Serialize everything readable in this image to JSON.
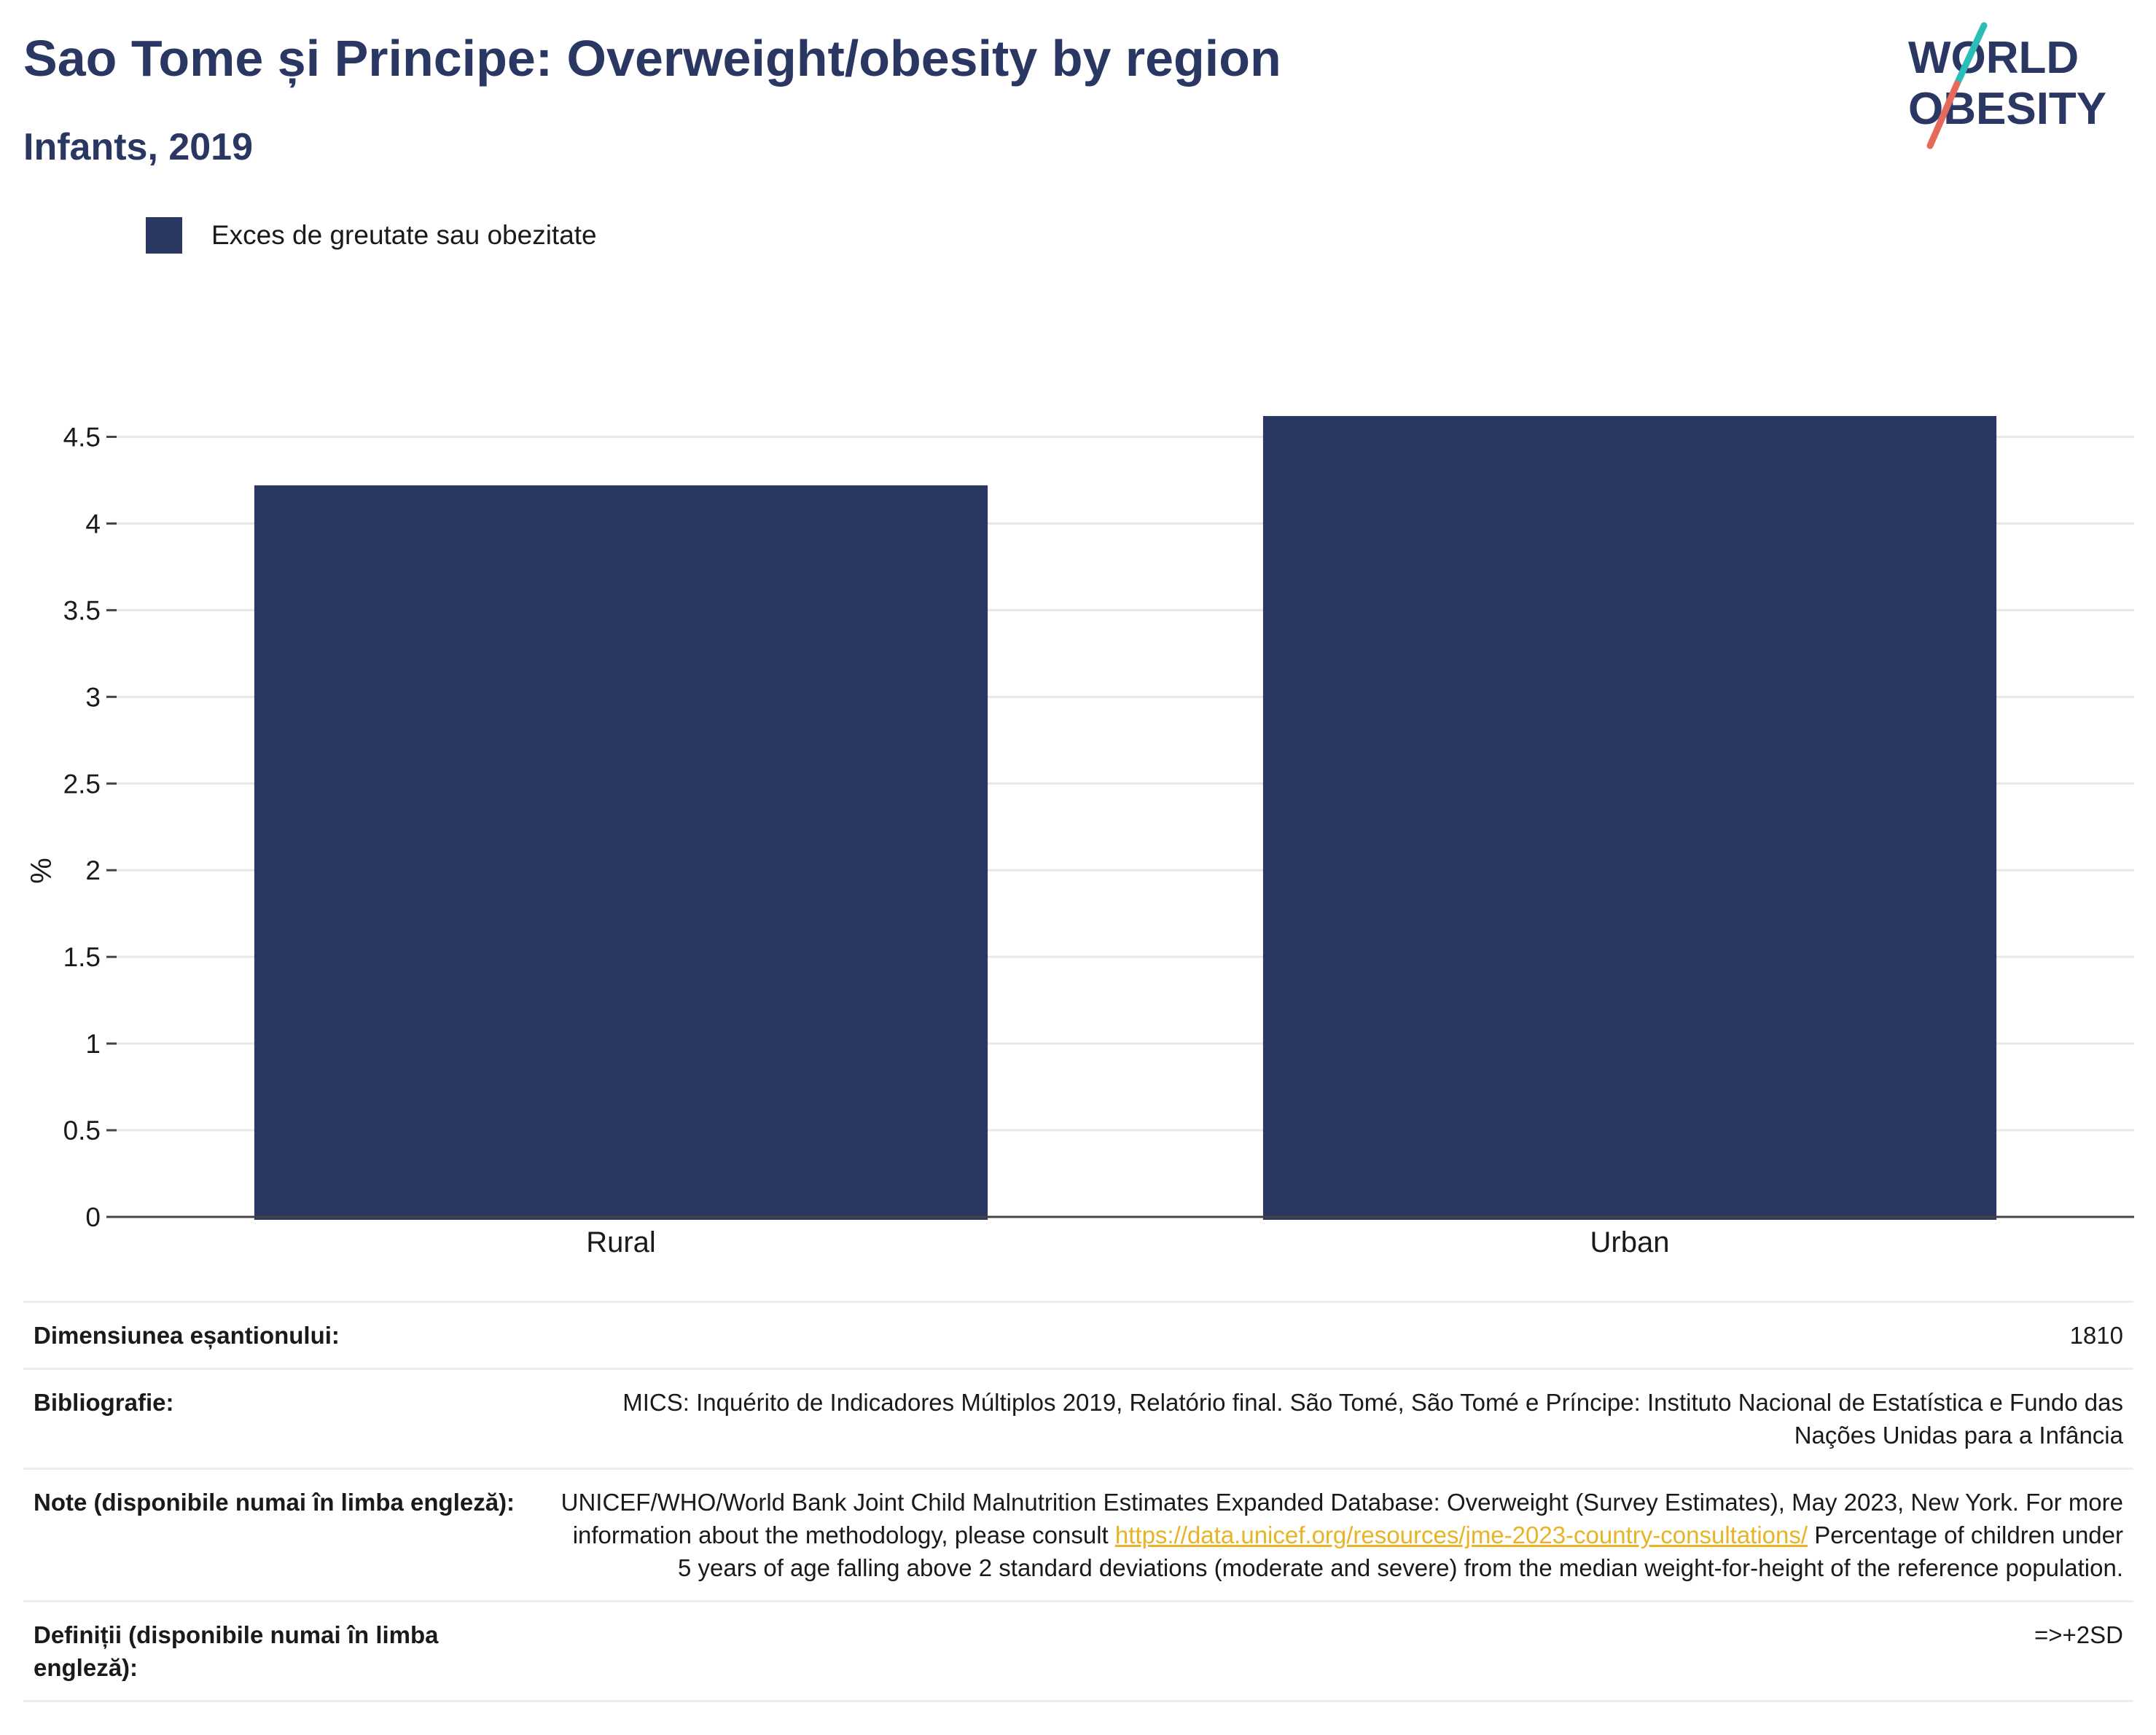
{
  "header": {
    "title": "Sao Tome și Principe: Overweight/obesity by region",
    "subtitle": "Infants, 2019"
  },
  "logo": {
    "line1": "WORLD",
    "line2": "OBESITY",
    "colors": {
      "text": "#2a3763",
      "slash_top": "#2bbdb7",
      "slash_bottom": "#e66a5c"
    }
  },
  "legend": {
    "label": "Exces de greutate sau obezitate",
    "color": "#2a3763"
  },
  "chart_data": {
    "type": "bar",
    "categories": [
      "Rural",
      "Urban"
    ],
    "series": [
      {
        "name": "Exces de greutate sau obezitate",
        "values": [
          4.22,
          4.62
        ],
        "color": "#2a3763"
      }
    ],
    "ylabel": "%",
    "xlabel": "",
    "ylim": [
      0,
      4.75
    ],
    "yticks": [
      "0",
      "0.5",
      "1",
      "1.5",
      "2",
      "2.5",
      "3",
      "3.5",
      "4",
      "4.5"
    ],
    "grid": true,
    "legend_position": "top-left"
  },
  "meta": {
    "sample_size": {
      "label": "Dimensiunea eșantionului:",
      "value": "1810"
    },
    "bibliography": {
      "label": "Bibliografie:",
      "value": "MICS: Inquérito de Indicadores Múltiplos 2019, Relatório final. São Tomé, São Tomé e Príncipe: Instituto Nacional de Estatística e Fundo das Nações Unidas para a Infância"
    },
    "notes": {
      "label": "Note (disponibile numai în limba engleză):",
      "text_before": "UNICEF/WHO/World Bank Joint Child Malnutrition Estimates Expanded Database: Overweight (Survey Estimates), May 2023, New York. For more information about the methodology, please consult ",
      "link": "https://data.unicef.org/resources/jme-2023-country-consultations/",
      "text_after": " Percentage of children under 5 years of age falling above 2 standard deviations (moderate and severe) from the median weight-for-height of the reference population."
    },
    "definitions": {
      "label": "Definiții (disponibile numai în limba engleză):",
      "value": "=>+2SD"
    }
  }
}
